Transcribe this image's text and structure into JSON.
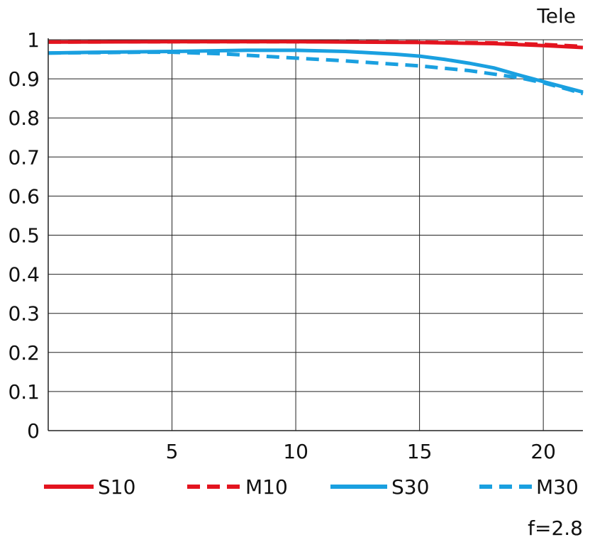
{
  "chart_data": {
    "type": "line",
    "title": "Tele",
    "caption": "f=2.8",
    "xlabel": "",
    "ylabel": "",
    "xlim": [
      0,
      21.6
    ],
    "ylim": [
      0,
      1
    ],
    "x_ticks": [
      5,
      10,
      15,
      20
    ],
    "y_ticks": [
      0,
      0.1,
      0.2,
      0.3,
      0.4,
      0.5,
      0.6,
      0.7,
      0.8,
      0.9,
      1
    ],
    "grid": true,
    "legend_position": "bottom",
    "series": [
      {
        "name": "S10",
        "color": "#e3141f",
        "dash": "solid",
        "x": [
          0,
          5,
          10,
          15,
          18,
          20,
          21.6
        ],
        "y": [
          0.994,
          0.995,
          0.995,
          0.993,
          0.99,
          0.985,
          0.98
        ]
      },
      {
        "name": "M10",
        "color": "#e3141f",
        "dash": "dashed",
        "x": [
          0,
          5,
          10,
          15,
          18,
          20,
          21.6
        ],
        "y": [
          0.994,
          0.995,
          0.995,
          0.994,
          0.992,
          0.988,
          0.983
        ]
      },
      {
        "name": "S30",
        "color": "#1aa0e0",
        "dash": "solid",
        "x": [
          0,
          2,
          5,
          8,
          10,
          12,
          14,
          15,
          16,
          17,
          18,
          19,
          20,
          21,
          21.6
        ],
        "y": [
          0.966,
          0.968,
          0.97,
          0.973,
          0.973,
          0.97,
          0.963,
          0.958,
          0.95,
          0.94,
          0.928,
          0.91,
          0.893,
          0.876,
          0.866
        ]
      },
      {
        "name": "M30",
        "color": "#1aa0e0",
        "dash": "dashed",
        "x": [
          0,
          2,
          4,
          5,
          7,
          10,
          12,
          15,
          17,
          19,
          20,
          21,
          21.6
        ],
        "y": [
          0.966,
          0.967,
          0.968,
          0.968,
          0.964,
          0.953,
          0.946,
          0.933,
          0.921,
          0.903,
          0.89,
          0.873,
          0.862
        ]
      }
    ]
  }
}
